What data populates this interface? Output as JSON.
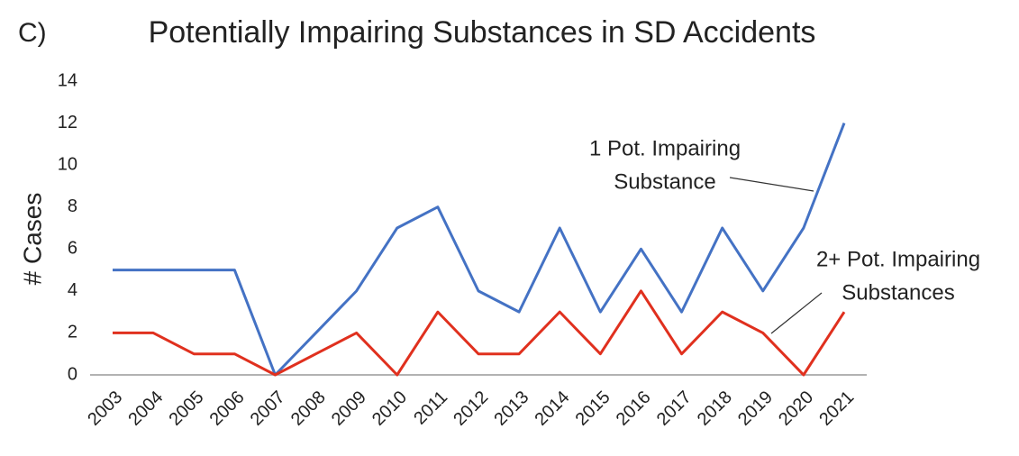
{
  "panel_label": "C)",
  "chart_data": {
    "type": "line",
    "title": "Potentially Impairing Substances in SD Accidents",
    "y_label": "# Cases",
    "categories": [
      "2003",
      "2004",
      "2005",
      "2006",
      "2007",
      "2008",
      "2009",
      "2010",
      "2011",
      "2012",
      "2013",
      "2014",
      "2015",
      "2016",
      "2017",
      "2018",
      "2019",
      "2020",
      "2021"
    ],
    "series": [
      {
        "name": "1 Pot. Impairing Substance",
        "color": "#4472c4",
        "values": [
          5,
          5,
          5,
          5,
          0,
          2,
          4,
          7,
          8,
          4,
          3,
          7,
          3,
          6,
          3,
          7,
          4,
          7,
          12
        ]
      },
      {
        "name": "2+ Pot. Impairing Substances",
        "color": "#e0301e",
        "values": [
          2,
          2,
          1,
          1,
          0,
          1,
          2,
          0,
          3,
          1,
          1,
          3,
          1,
          4,
          1,
          3,
          2,
          0,
          3
        ]
      }
    ],
    "annotations": [
      {
        "lines": [
          "1 Pot. Impairing",
          "Substance"
        ]
      },
      {
        "lines": [
          "2+ Pot. Impairing",
          "Substances"
        ]
      }
    ],
    "ylim": [
      0,
      14
    ],
    "yticks": [
      0,
      2,
      4,
      6,
      8,
      10,
      12,
      14
    ]
  }
}
